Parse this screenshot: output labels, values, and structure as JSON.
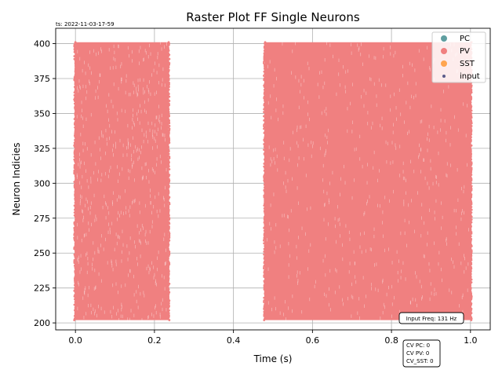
{
  "timestamp": "ts: 2022-11-03-17-59",
  "chart_data": {
    "type": "scatter",
    "title": "Raster Plot FF Single Neurons",
    "xlabel": "Time (s)",
    "ylabel": "Neuron Indicies",
    "xlim": [
      -0.05,
      1.05
    ],
    "ylim": [
      195,
      411
    ],
    "xticks": [
      0.0,
      0.2,
      0.4,
      0.6,
      0.8,
      1.0
    ],
    "xtick_labels": [
      "0.0",
      "0.2",
      "0.4",
      "0.6",
      "0.8",
      "1.0"
    ],
    "yticks": [
      200,
      225,
      250,
      275,
      300,
      325,
      350,
      375,
      400
    ],
    "ytick_labels": [
      "200",
      "225",
      "250",
      "275",
      "300",
      "325",
      "350",
      "375",
      "400"
    ],
    "grid": true,
    "legend_position": "top-right",
    "series": [
      {
        "name": "PC",
        "color": "#5f9ea0",
        "marker": "circle",
        "points": []
      },
      {
        "name": "PV",
        "color": "#f08080",
        "marker": "circle",
        "spike_windows": [
          [
            0.0,
            0.235
          ],
          [
            0.48,
            1.0
          ]
        ],
        "neuron_range": [
          202,
          401
        ]
      },
      {
        "name": "SST",
        "color": "#ffa54f",
        "marker": "circle",
        "points": []
      },
      {
        "name": "input",
        "color": "#5b5b8a",
        "marker": "small-dot",
        "points": []
      }
    ],
    "annotations": {
      "input_freq": "Input Freq: 131 Hz",
      "cv_lines": [
        "CV PC: 0",
        "CV PV: 0",
        "CV_SST: 0"
      ]
    }
  }
}
